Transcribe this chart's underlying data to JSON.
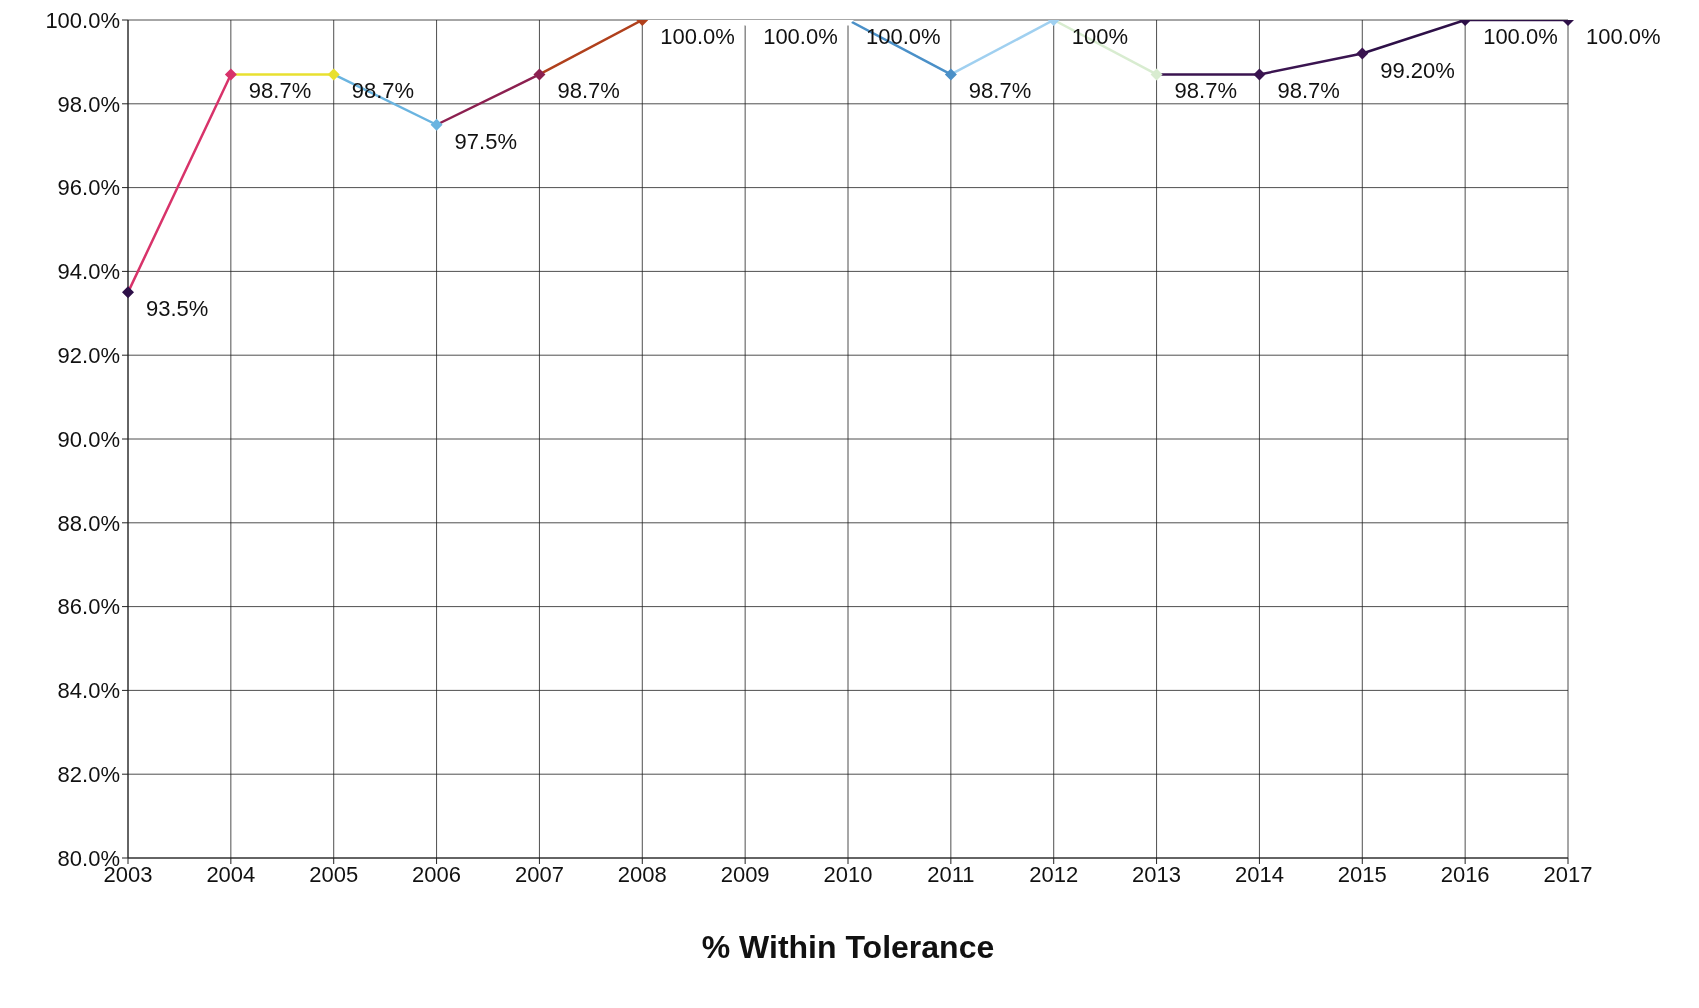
{
  "chart_data": {
    "type": "line",
    "xlabel": "% Within Tolerance",
    "categories": [
      "2003",
      "2004",
      "2005",
      "2006",
      "2007",
      "2008",
      "2009",
      "2010",
      "2011",
      "2012",
      "2013",
      "2014",
      "2015",
      "2016",
      "2017"
    ],
    "values": [
      93.5,
      98.7,
      98.7,
      97.5,
      98.7,
      100.0,
      100.0,
      100.0,
      98.7,
      100,
      98.7,
      98.7,
      99.2,
      100.0,
      100.0
    ],
    "colors": [
      "#2e1048",
      "#d8336a",
      "#e8e030",
      "#6ab4e0",
      "#8c2050",
      "#b0401c",
      "#ffffff",
      "#ffffff",
      "#4a90c8",
      "#a0d0f0",
      "#d8ecd0",
      "#3a1450",
      "#3a1450",
      "#2e1048",
      "#2e1048"
    ],
    "value_labels": [
      "93.5%",
      "98.7%",
      "98.7%",
      "97.5%",
      "98.7%",
      "100.0%",
      "100.0%",
      "100.0%",
      "98.7%",
      "100%",
      "98.7%",
      "98.7%",
      "99.20%",
      "100.0%",
      "100.0%"
    ],
    "ylim": [
      80,
      100
    ],
    "yticks": [
      {
        "value": 80,
        "label": "80.0%"
      },
      {
        "value": 82,
        "label": "82.0%"
      },
      {
        "value": 84,
        "label": "84.0%"
      },
      {
        "value": 86,
        "label": "86.0%"
      },
      {
        "value": 88,
        "label": "88.0%"
      },
      {
        "value": 90,
        "label": "90.0%"
      },
      {
        "value": 92,
        "label": "92.0%"
      },
      {
        "value": 94,
        "label": "94.0%"
      },
      {
        "value": 96,
        "label": "96.0%"
      },
      {
        "value": 98,
        "label": "98.0%"
      },
      {
        "value": 100,
        "label": "100.0%"
      }
    ],
    "grid": true,
    "marker": "diamond"
  }
}
